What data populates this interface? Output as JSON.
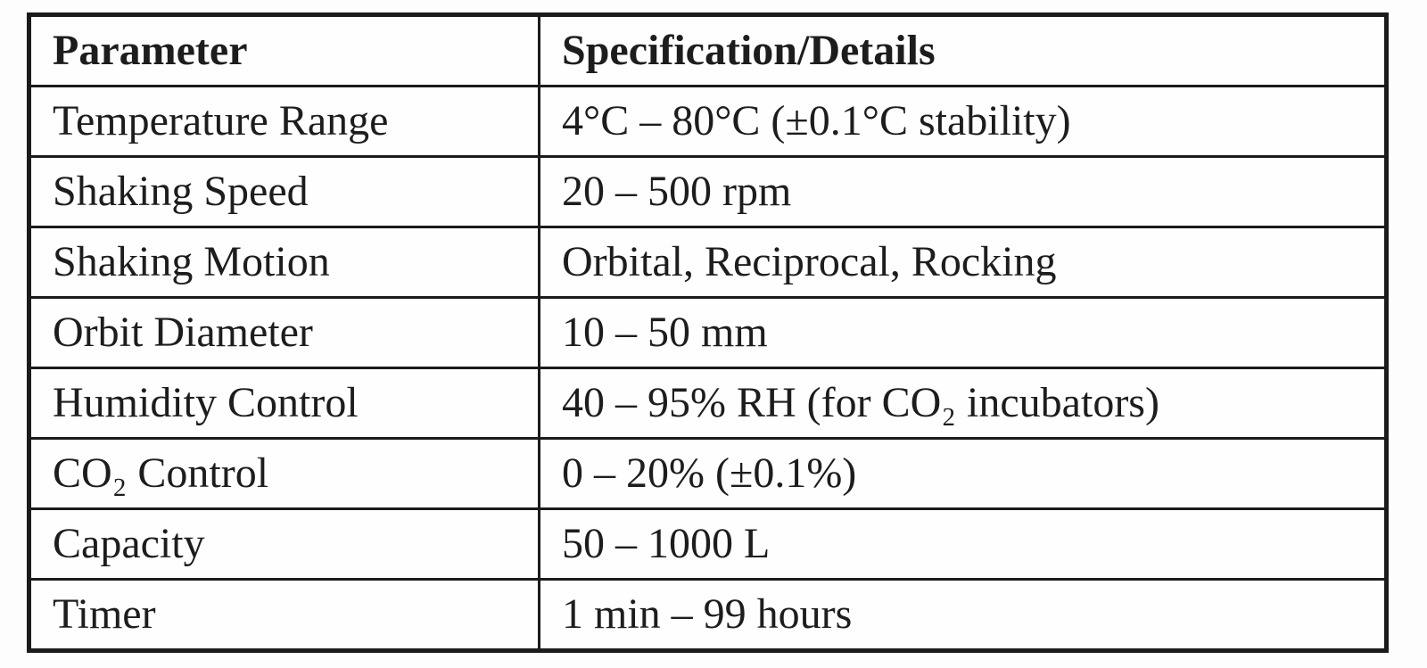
{
  "document": {
    "kind": "specification-table",
    "text_color": "#1d1d1d",
    "border_color": "#1b1b1b",
    "background_color": "#fdfdfd"
  },
  "table": {
    "columns": {
      "parameter": "Parameter",
      "specification": "Specification/Details"
    },
    "rows": [
      {
        "parameter": "Temperature Range",
        "specification": "4°C – 80°C (±0.1°C stability)"
      },
      {
        "parameter": "Shaking Speed",
        "specification": "20 – 500 rpm"
      },
      {
        "parameter": "Shaking Motion",
        "specification": "Orbital, Reciprocal, Rocking"
      },
      {
        "parameter": "Orbit Diameter",
        "specification": "10 – 50 mm"
      },
      {
        "parameter": "Humidity Control",
        "specification": "40 – 95% RH (for CO₂ incubators)"
      },
      {
        "parameter": "CO₂ Control",
        "specification": "0 – 20% (±0.1%)"
      },
      {
        "parameter": "Capacity",
        "specification": "50 – 1000 L"
      },
      {
        "parameter": "Timer",
        "specification": "1 min – 99 hours"
      }
    ]
  }
}
